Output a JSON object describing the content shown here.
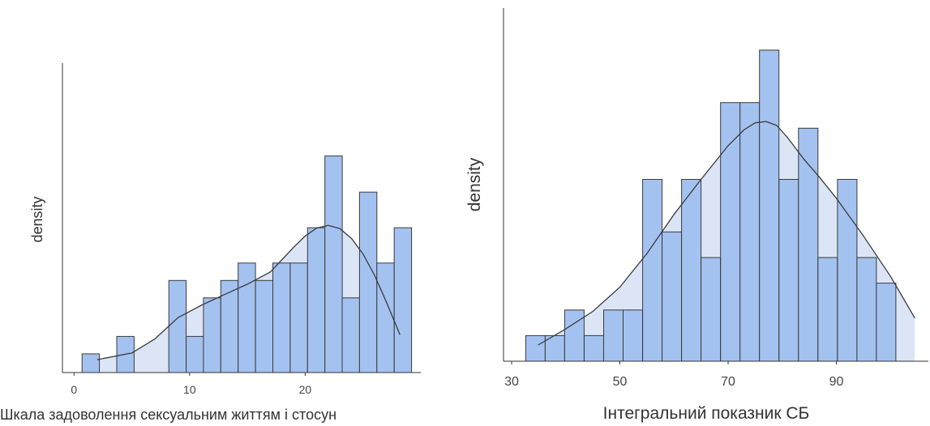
{
  "colors": {
    "bar": "#a4c2f0",
    "density_fill": "#dbe5f6",
    "stroke": "#3a3a3a",
    "axis": "#333333"
  },
  "chart_data": [
    {
      "type": "bar",
      "subtype": "histogram-with-density",
      "xlabel": "Шкала задоволення сексуальним життям і стосун",
      "ylabel": "density",
      "xlim": [
        -1,
        30
      ],
      "ylim": [
        0,
        0.118
      ],
      "x_ticks": [
        0,
        10,
        20
      ],
      "bins": [
        {
          "x0": 0.7,
          "x1": 2.2,
          "density": 0.007
        },
        {
          "x0": 2.2,
          "x1": 3.7,
          "density": 0.0
        },
        {
          "x0": 3.7,
          "x1": 5.2,
          "density": 0.0135
        },
        {
          "x0": 5.2,
          "x1": 6.7,
          "density": 0.0
        },
        {
          "x0": 6.7,
          "x1": 8.2,
          "density": 0.0
        },
        {
          "x0": 8.2,
          "x1": 9.7,
          "density": 0.0344
        },
        {
          "x0": 9.7,
          "x1": 11.2,
          "density": 0.0135
        },
        {
          "x0": 11.2,
          "x1": 12.7,
          "density": 0.0279
        },
        {
          "x0": 12.7,
          "x1": 14.2,
          "density": 0.0344
        },
        {
          "x0": 14.2,
          "x1": 15.7,
          "density": 0.0409
        },
        {
          "x0": 15.7,
          "x1": 17.2,
          "density": 0.0344
        },
        {
          "x0": 17.2,
          "x1": 18.7,
          "density": 0.0409
        },
        {
          "x0": 18.7,
          "x1": 20.2,
          "density": 0.0409
        },
        {
          "x0": 20.2,
          "x1": 21.7,
          "density": 0.0541
        },
        {
          "x0": 21.7,
          "x1": 23.2,
          "density": 0.0809
        },
        {
          "x0": 23.2,
          "x1": 24.7,
          "density": 0.0279
        },
        {
          "x0": 24.7,
          "x1": 26.2,
          "density": 0.0674
        },
        {
          "x0": 26.2,
          "x1": 27.7,
          "density": 0.0409
        },
        {
          "x0": 27.7,
          "x1": 29.2,
          "density": 0.0541
        }
      ],
      "density_curve": {
        "x": [
          2,
          5,
          7,
          9,
          11,
          13,
          15,
          17,
          18,
          19,
          20,
          21,
          22,
          23,
          24,
          25,
          26,
          27,
          28.2
        ],
        "y": [
          0.0048,
          0.0073,
          0.0126,
          0.0205,
          0.0251,
          0.0291,
          0.033,
          0.0376,
          0.0422,
          0.0468,
          0.051,
          0.054,
          0.055,
          0.0538,
          0.0501,
          0.0443,
          0.0363,
          0.0266,
          0.0141
        ]
      }
    },
    {
      "type": "bar",
      "subtype": "histogram-with-density",
      "xlabel": "Інтегральний показник СБ",
      "ylabel": "density",
      "xlim": [
        28.5,
        107
      ],
      "ylim": [
        0,
        0.0267
      ],
      "x_ticks": [
        30,
        50,
        70,
        90
      ],
      "bins": [
        {
          "x0": 32.6,
          "x1": 36.2,
          "density": 0.0019
        },
        {
          "x0": 36.2,
          "x1": 39.8,
          "density": 0.0019
        },
        {
          "x0": 39.8,
          "x1": 43.4,
          "density": 0.0038
        },
        {
          "x0": 43.4,
          "x1": 47.0,
          "density": 0.0019
        },
        {
          "x0": 47.0,
          "x1": 50.6,
          "density": 0.0038
        },
        {
          "x0": 50.6,
          "x1": 54.2,
          "density": 0.0038
        },
        {
          "x0": 54.2,
          "x1": 57.8,
          "density": 0.0135
        },
        {
          "x0": 57.8,
          "x1": 61.4,
          "density": 0.0096
        },
        {
          "x0": 61.4,
          "x1": 65.0,
          "density": 0.0135
        },
        {
          "x0": 65.0,
          "x1": 68.6,
          "density": 0.0077
        },
        {
          "x0": 68.6,
          "x1": 72.2,
          "density": 0.0192
        },
        {
          "x0": 72.2,
          "x1": 75.8,
          "density": 0.0192
        },
        {
          "x0": 75.8,
          "x1": 79.4,
          "density": 0.0231
        },
        {
          "x0": 79.4,
          "x1": 83.0,
          "density": 0.0135
        },
        {
          "x0": 83.0,
          "x1": 86.6,
          "density": 0.0173
        },
        {
          "x0": 86.6,
          "x1": 90.2,
          "density": 0.0077
        },
        {
          "x0": 90.2,
          "x1": 93.8,
          "density": 0.0135
        },
        {
          "x0": 93.8,
          "x1": 97.4,
          "density": 0.0077
        },
        {
          "x0": 97.4,
          "x1": 101.0,
          "density": 0.0058
        }
      ],
      "density_curve": {
        "x": [
          34.9,
          40,
          45,
          50,
          55,
          60,
          65,
          70,
          73,
          75,
          77,
          79,
          81,
          84,
          87,
          90,
          95,
          100,
          104.5
        ],
        "y": [
          0.0012,
          0.0024,
          0.0037,
          0.0055,
          0.008,
          0.0109,
          0.0135,
          0.016,
          0.0172,
          0.0177,
          0.0178,
          0.0175,
          0.0166,
          0.015,
          0.0136,
          0.0121,
          0.0093,
          0.0063,
          0.0032
        ]
      }
    }
  ]
}
